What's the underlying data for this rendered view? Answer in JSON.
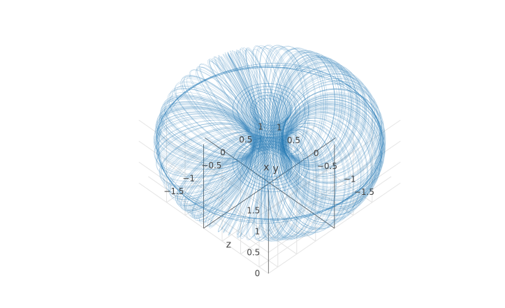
{
  "chart_data": {
    "type": "line3d",
    "title": "",
    "series": [
      {
        "color": "#1f77b4",
        "generator": {
          "kind": "toroidal-attractor",
          "description": "Dense trajectory winding around a torus (R≈1.25, r≈0.95 in x–y, z 0…2) with a twisted central funnel along the z-axis",
          "z_range": [
            0,
            2
          ]
        }
      }
    ],
    "axes": {
      "x": {
        "title": "x",
        "ticks": [
          -1.5,
          -1,
          -0.5,
          0,
          0.5,
          1
        ],
        "tick_labels": [
          "−1.5",
          "−1",
          "−0.5",
          "0",
          "0.5",
          "1"
        ],
        "range": [
          -1.75,
          1.75
        ]
      },
      "y": {
        "title": "y",
        "ticks": [
          -1.5,
          -1,
          -0.5,
          0,
          0.5,
          1
        ],
        "tick_labels": [
          "−1.5",
          "−1",
          "−0.5",
          "0",
          "0.5",
          "1"
        ],
        "range": [
          -1.75,
          1.75
        ]
      },
      "z": {
        "title": "z",
        "ticks": [
          0,
          0.5,
          1,
          1.5
        ],
        "tick_labels": [
          "0",
          "0.5",
          "1",
          "1.5"
        ],
        "range": [
          0,
          2
        ]
      }
    },
    "grid": true,
    "legend": "none",
    "colors": {
      "line": "#1f77b4",
      "grid": "#e4e4e4",
      "spike": "#555555",
      "text": "#444444"
    }
  }
}
